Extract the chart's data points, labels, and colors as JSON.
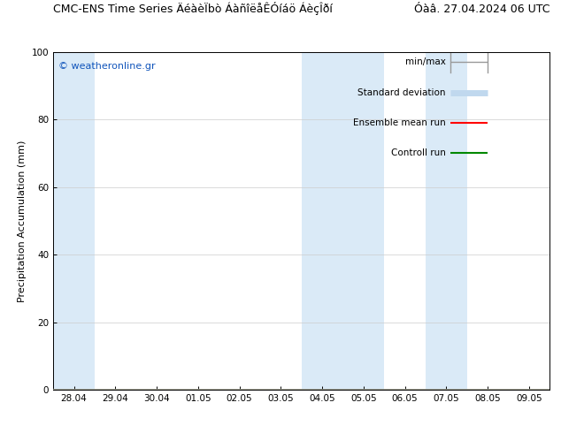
{
  "title_left": "CMC-ENS Time Series ÄéàèÏbò ÁàñîëåÊÓíáö ÁèçÎðí",
  "title_right": "Óàâ. 27.04.2024 06 UTC",
  "ylabel": "Precipitation Accumulation (mm)",
  "ylim": [
    0,
    100
  ],
  "yticks": [
    0,
    20,
    40,
    60,
    80,
    100
  ],
  "xtick_labels": [
    "28.04",
    "29.04",
    "30.04",
    "01.05",
    "02.05",
    "03.05",
    "04.05",
    "05.05",
    "06.05",
    "07.05",
    "08.05",
    "09.05"
  ],
  "n_ticks": 12,
  "background_color": "#ffffff",
  "plot_bg_color": "#ffffff",
  "shaded_color": "#daeaf7",
  "watermark": "© weatheronline.gr",
  "watermark_color": "#1155bb",
  "line_color_minmax": "#999999",
  "line_color_std": "#c0d8ee",
  "line_color_mean": "#ff0000",
  "line_color_ctrl": "#008800",
  "title_fontsize": 9,
  "axis_fontsize": 8,
  "tick_fontsize": 7.5,
  "legend_fontsize": 7.5
}
